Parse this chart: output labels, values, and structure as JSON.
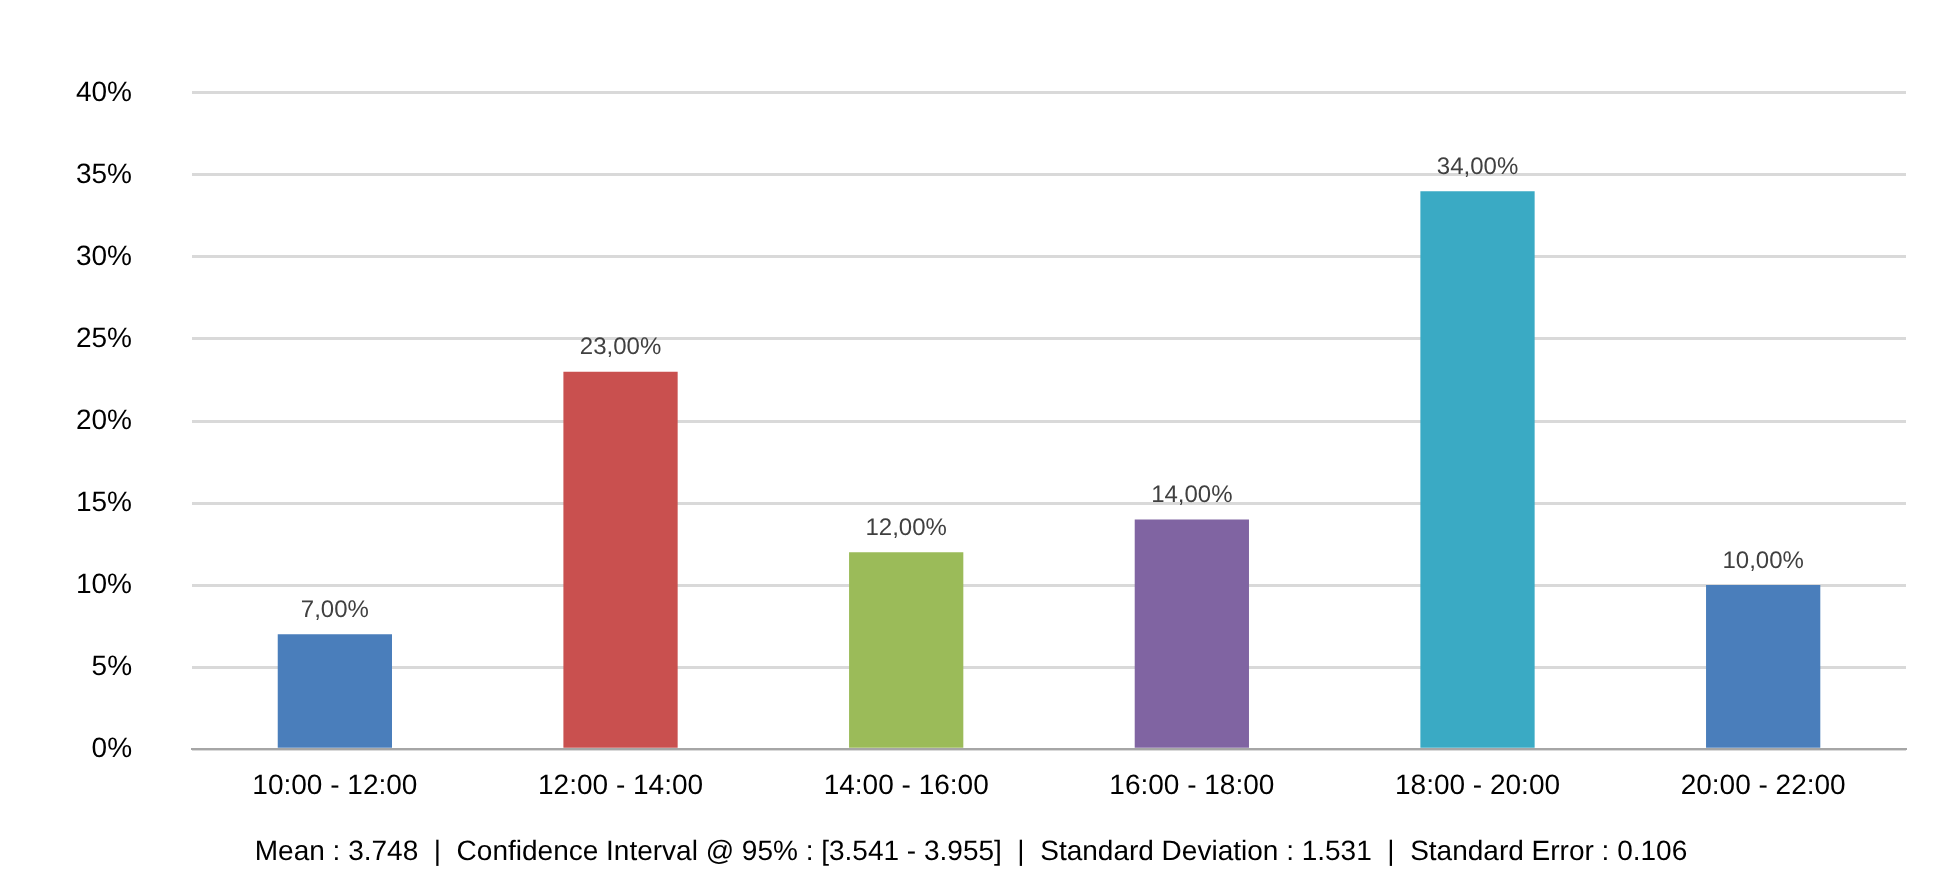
{
  "chart_data": {
    "type": "bar",
    "categories": [
      "10:00 - 12:00",
      "12:00 - 14:00",
      "14:00 - 16:00",
      "16:00 - 18:00",
      "18:00 - 20:00",
      "20:00 - 22:00"
    ],
    "values": [
      7,
      23,
      12,
      14,
      34,
      10
    ],
    "colors": [
      "#4a7ebb",
      "#c9504f",
      "#9bbb59",
      "#8064a2",
      "#3aaac4",
      "#4a7ebb"
    ],
    "value_labels": [
      "7,00%",
      "23,00%",
      "12,00%",
      "14,00%",
      "34,00%",
      "10,00%"
    ],
    "ylim": [
      0,
      40
    ],
    "yticks": [
      {
        "value": 0,
        "label": "0%"
      },
      {
        "value": 5,
        "label": "5%"
      },
      {
        "value": 10,
        "label": "10%"
      },
      {
        "value": 15,
        "label": "15%"
      },
      {
        "value": 20,
        "label": "20%"
      },
      {
        "value": 25,
        "label": "25%"
      },
      {
        "value": 30,
        "label": "30%"
      },
      {
        "value": 35,
        "label": "35%"
      },
      {
        "value": 40,
        "label": "40%"
      }
    ],
    "grid": "y",
    "annotations": [
      "Mean : 3.748  |  Confidence Interval @ 95% : [3.541 - 3.955]  |  Standard Deviation : 1.531  |  Standard Error : 0.106"
    ]
  }
}
